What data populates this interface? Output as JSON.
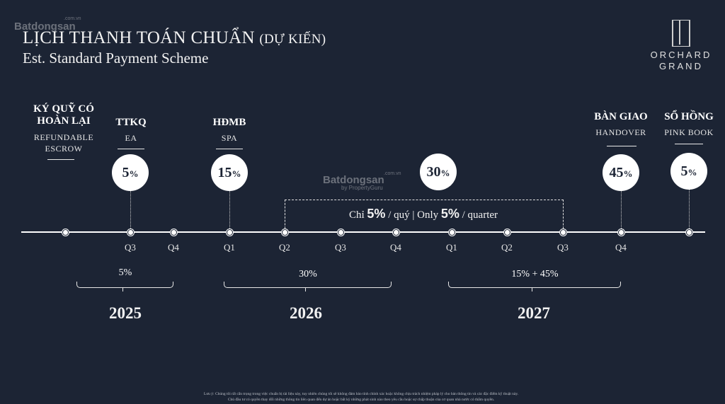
{
  "watermark": {
    "brand": "Batdongsan",
    "domain": ".com.vn",
    "sub": "by PropertyGuru"
  },
  "title": {
    "vn": "LỊCH THANH TOÁN CHUẨN",
    "vn_suffix": "(DỰ KIẾN)",
    "en": "Est. Standard Payment Scheme"
  },
  "logo": {
    "line1": "ORCHARD",
    "line2": "GRAND"
  },
  "milestones": [
    {
      "h1": "KÝ QUỸ CÓ",
      "h2": "HOÀN LẠI",
      "s1": "REFUNDABLE",
      "s2": "ESCROW"
    },
    {
      "h1": "TTKQ",
      "s1": "EA",
      "pct": "5",
      "unit": "%"
    },
    {
      "h1": "HĐMB",
      "s1": "SPA",
      "pct": "15",
      "unit": "%"
    },
    {
      "pct": "30",
      "unit": "%"
    },
    {
      "h1": "BÀN GIAO",
      "s1": "HANDOVER",
      "pct": "45",
      "unit": "%"
    },
    {
      "h1": "SỔ HỒNG",
      "s1": "PINK BOOK",
      "pct": "5",
      "unit": "%"
    }
  ],
  "rate": {
    "pre": "Chỉ ",
    "v1": "5%",
    "mid": " / quý | Only ",
    "v2": "5%",
    "post": " / quarter"
  },
  "quarters": [
    "Q3",
    "Q4",
    "Q1",
    "Q2",
    "Q3",
    "Q4",
    "Q1",
    "Q2",
    "Q3",
    "Q4"
  ],
  "periods": [
    {
      "label": "5%",
      "year": "2025"
    },
    {
      "label": "30%",
      "year": "2026"
    },
    {
      "label": "15% + 45%",
      "year": "2027"
    }
  ],
  "disclaimer": {
    "line1": "Lưu ý: Chúng tôi rất cẩn trọng trong việc chuẩn bị tài liệu này, tuy nhiên chúng tôi sẽ không đảm bảo tính chính xác hoặc không chịu trách nhiệm pháp lý cho bản thông tin và các đặc điểm kỹ thuật này.",
    "line2": "Chủ đầu tư có quyền thay đổi những thông tin liên quan đến dự án hoặc bất kỳ những phát sinh nào theo yêu cầu hoặc sự chấp thuận của cơ quan nhà nước có thẩm quyền."
  }
}
